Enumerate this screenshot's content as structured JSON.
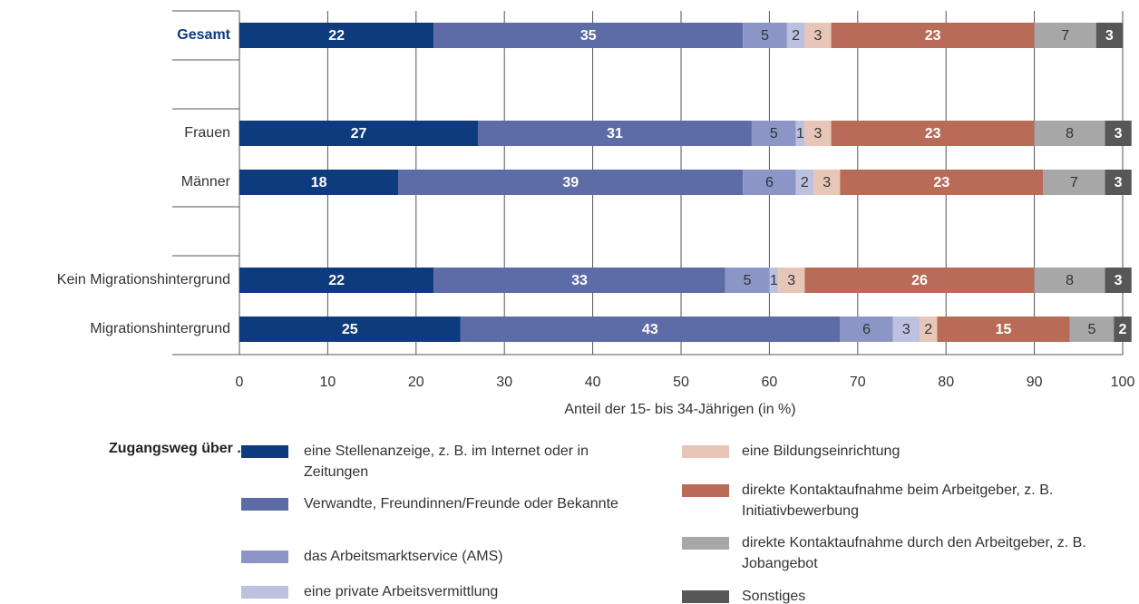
{
  "chart_data": {
    "type": "stacked-bar-horizontal",
    "categories": [
      "Gesamt",
      null,
      "Frauen",
      "Männer",
      null,
      "Kein Migrationshintergrund",
      "Migrationshintergrund"
    ],
    "series": [
      {
        "name": "eine Stellenanzeige, z. B. im Internet oder in Zeitungen",
        "color": "#0e3a7e",
        "values": [
          22,
          null,
          27,
          18,
          null,
          22,
          25
        ]
      },
      {
        "name": "Verwandte, Freundinnen/Freunde oder Bekannte",
        "color": "#5d6ba6",
        "values": [
          35,
          null,
          31,
          39,
          null,
          33,
          43
        ]
      },
      {
        "name": "das Arbeitsmarktservice (AMS)",
        "color": "#8b96c6",
        "values": [
          5,
          null,
          5,
          6,
          null,
          5,
          6
        ]
      },
      {
        "name": "eine private Arbeitsvermittlung",
        "color": "#bcc1df",
        "values": [
          2,
          null,
          1,
          2,
          null,
          1,
          3
        ]
      },
      {
        "name": "eine Bildungseinrichtung",
        "color": "#e7c6b8",
        "values": [
          3,
          null,
          3,
          3,
          null,
          3,
          2
        ]
      },
      {
        "name": "direkte Kontaktaufnahme beim Arbeitgeber, z. B. Initiativbewerbung",
        "color": "#b86c58",
        "values": [
          23,
          null,
          23,
          23,
          null,
          26,
          15
        ]
      },
      {
        "name": "direkte Kontaktaufnahme durch den Arbeitgeber, z. B. Jobangebot",
        "color": "#a7a7a7",
        "values": [
          7,
          null,
          8,
          7,
          null,
          8,
          5
        ]
      },
      {
        "name": "Sonstiges",
        "color": "#575757",
        "values": [
          3,
          null,
          3,
          3,
          null,
          3,
          2
        ]
      }
    ],
    "xlim": [
      0,
      100
    ],
    "xticks": [
      0,
      10,
      20,
      30,
      40,
      50,
      60,
      70,
      80,
      90,
      100
    ],
    "xlabel": "Anteil der 15- bis 34-Jährigen (in %)",
    "legend_title": "Zugangsweg über ...",
    "grid": true
  }
}
